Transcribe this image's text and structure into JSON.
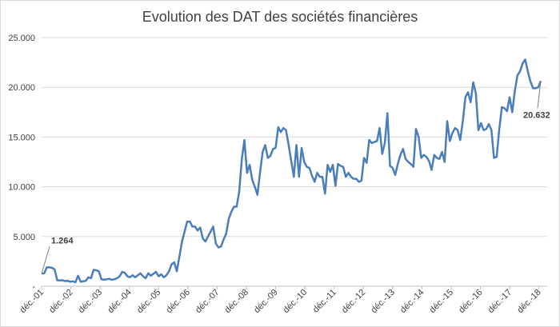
{
  "chart_data": {
    "type": "line",
    "title": "Evolution des DAT des sociétés financières",
    "xlabel": "",
    "ylabel": "",
    "ylim": [
      0,
      25000
    ],
    "yticks": [
      0,
      5000,
      10000,
      15000,
      20000,
      25000
    ],
    "ytick_labels": [
      "-",
      "5.000",
      "10.000",
      "15.000",
      "20.000",
      "25.000"
    ],
    "xtick_labels": [
      "déc.-01",
      "déc.-02",
      "déc.-03",
      "déc.-04",
      "déc.-05",
      "déc.-06",
      "déc.-07",
      "déc.-08",
      "déc.-09",
      "déc.-10",
      "déc.-11",
      "déc.-12",
      "déc.-13",
      "déc.-14",
      "déc.-15",
      "déc.-16",
      "déc.-17",
      "déc.-18"
    ],
    "grid": true,
    "line_color": "#4a7ebb",
    "x_start_year": 2001.917,
    "x_end_year": 2019.2,
    "series": [
      {
        "values": [
          1264,
          1300,
          1900,
          1900,
          1850,
          1700,
          600,
          580,
          600,
          520,
          550,
          450,
          500,
          400,
          1050,
          450,
          500,
          550,
          900,
          800,
          1650,
          1600,
          1500,
          700,
          650,
          700,
          750,
          650,
          700,
          800,
          1000,
          1450,
          1350,
          1000,
          900,
          1100,
          900,
          1100,
          1300,
          1000,
          800,
          1300,
          1050,
          1250,
          1450,
          1000,
          1200,
          900,
          1100,
          1500,
          2200,
          2400,
          1500,
          3000,
          4500,
          5500,
          6500,
          6500,
          6000,
          6000,
          5600,
          5900,
          4800,
          4500,
          5000,
          5500,
          6000,
          4300,
          3900,
          4000,
          4700,
          5300,
          6800,
          7500,
          8000,
          8000,
          9500,
          12800,
          14700,
          11400,
          12200,
          10700,
          10000,
          9200,
          11400,
          13500,
          14200,
          12900,
          13100,
          13800,
          13900,
          16000,
          15500,
          15900,
          15700,
          14200,
          12600,
          11000,
          14200,
          11000,
          13900,
          12500,
          12000,
          11900,
          11100,
          10500,
          11400,
          11000,
          11000,
          9300,
          12200,
          11500,
          12200,
          10100,
          12300,
          12100,
          12000,
          11000,
          11400,
          11000,
          10800,
          10800,
          10500,
          10600,
          12900,
          12400,
          14700,
          14400,
          14500,
          14600,
          15900,
          13300,
          14400,
          17400,
          12100,
          11900,
          11200,
          12300,
          13200,
          13800,
          12800,
          12500,
          12300,
          12000,
          15800,
          15000,
          12900,
          13200,
          13000,
          12600,
          11700,
          13200,
          12900,
          12800,
          13500,
          12500,
          16600,
          14600,
          15400,
          15900,
          15700,
          14700,
          16600,
          19000,
          19500,
          18500,
          20500,
          19400,
          15700,
          16400,
          15700,
          15800,
          16300,
          15700,
          12900,
          13000,
          15700,
          18000,
          17900,
          17600,
          19000,
          17500,
          19600,
          21200,
          21600,
          22400,
          22800,
          21600,
          20600,
          19900,
          19900,
          20000,
          20632
        ]
      }
    ],
    "annotations": [
      {
        "text": "1.264",
        "point": "first"
      },
      {
        "text": "20.632",
        "point": "last"
      }
    ]
  }
}
